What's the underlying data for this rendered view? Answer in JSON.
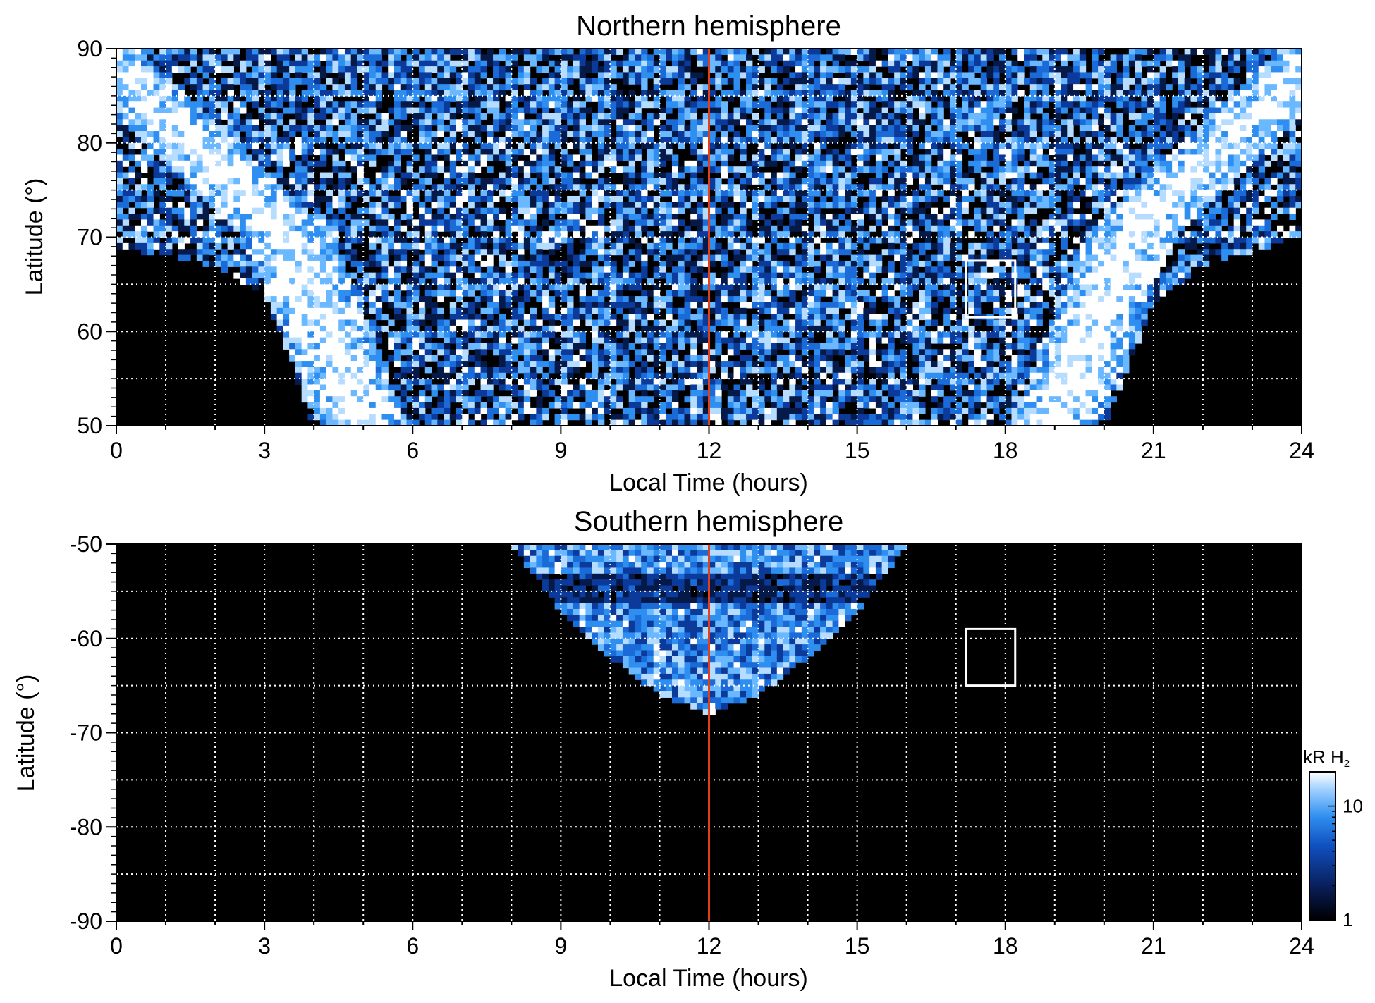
{
  "chart_data": [
    {
      "type": "heatmap",
      "title": "Northern hemisphere",
      "xlabel": "Local Time (hours)",
      "ylabel": "Latitude (°)",
      "xlim": [
        0,
        24
      ],
      "ylim": [
        50,
        90
      ],
      "xticks": [
        0,
        3,
        6,
        9,
        12,
        15,
        18,
        21,
        24
      ],
      "yticks": [
        50,
        60,
        70,
        80,
        90
      ],
      "grid": true,
      "grid_x_step": 1,
      "grid_y_step": 5,
      "coverage_boundary": [
        [
          0,
          69
        ],
        [
          2,
          67
        ],
        [
          3,
          64
        ],
        [
          4,
          50
        ],
        [
          20,
          50
        ],
        [
          21,
          63
        ],
        [
          22,
          67
        ],
        [
          24,
          70
        ]
      ],
      "bright_arcs": [
        {
          "lt_at_50": 5.0,
          "lt_at_70": 3.5,
          "lt_at_80": 1.5
        },
        {
          "lt_at_50": 19.0,
          "lt_at_70": 20.5,
          "lt_at_80": 22.5
        }
      ],
      "reference_line": {
        "x": 12,
        "color": "#e0401a"
      },
      "box": {
        "x": [
          17.2,
          18.2
        ],
        "y": [
          61.5,
          67.5
        ],
        "color": "#ffffff"
      }
    },
    {
      "type": "heatmap",
      "title": "Southern hemisphere",
      "xlabel": "Local Time (hours)",
      "ylabel": "Latitude (°)",
      "xlim": [
        0,
        24
      ],
      "ylim": [
        -90,
        -50
      ],
      "xticks": [
        0,
        3,
        6,
        9,
        12,
        15,
        18,
        21,
        24
      ],
      "yticks": [
        -90,
        -80,
        -70,
        -60,
        -50
      ],
      "grid": true,
      "grid_x_step": 1,
      "grid_y_step": 5,
      "coverage_boundary": [
        [
          8,
          -50
        ],
        [
          9,
          -57
        ],
        [
          10,
          -62
        ],
        [
          11,
          -66
        ],
        [
          12,
          -68
        ],
        [
          13,
          -66
        ],
        [
          14,
          -62
        ],
        [
          15,
          -57
        ],
        [
          16,
          -50
        ]
      ],
      "reference_line": {
        "x": 12,
        "color": "#e0401a"
      },
      "box": {
        "x": [
          17.2,
          18.2
        ],
        "y": [
          -65,
          -59
        ],
        "color": "#ffffff"
      }
    }
  ],
  "colorbar": {
    "title": "kR H",
    "subscript": "2",
    "scale": "log",
    "range": [
      1,
      20
    ],
    "ticks": [
      1,
      10
    ],
    "tick_labels": [
      "1",
      "10"
    ],
    "colors": [
      "#000000",
      "#081a50",
      "#1050c0",
      "#3090f0",
      "#9fd0ff",
      "#ffffff"
    ]
  }
}
